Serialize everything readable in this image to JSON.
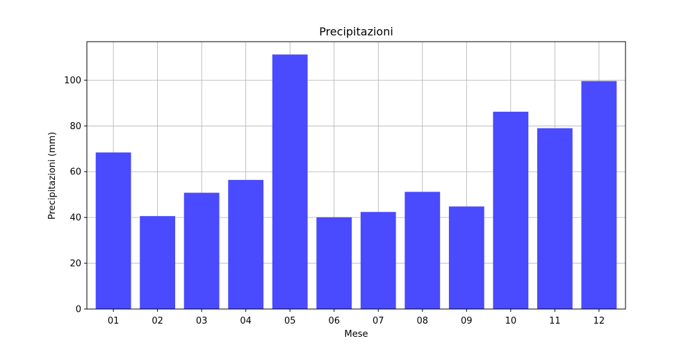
{
  "chart_data": {
    "type": "bar",
    "title": "Precipitazioni",
    "xlabel": "Mese",
    "ylabel": "Precipitazioni (mm)",
    "categories": [
      "01",
      "02",
      "03",
      "04",
      "05",
      "06",
      "07",
      "08",
      "09",
      "10",
      "11",
      "12"
    ],
    "values": [
      68.4,
      40.6,
      50.8,
      56.4,
      111.2,
      40.1,
      42.4,
      51.2,
      44.8,
      86.2,
      79.0,
      99.6
    ],
    "ylim": [
      0,
      116.8
    ],
    "yticks": [
      0,
      20,
      40,
      60,
      80,
      100
    ],
    "grid": true,
    "bar_color": "#4a4aff",
    "legend": false
  }
}
